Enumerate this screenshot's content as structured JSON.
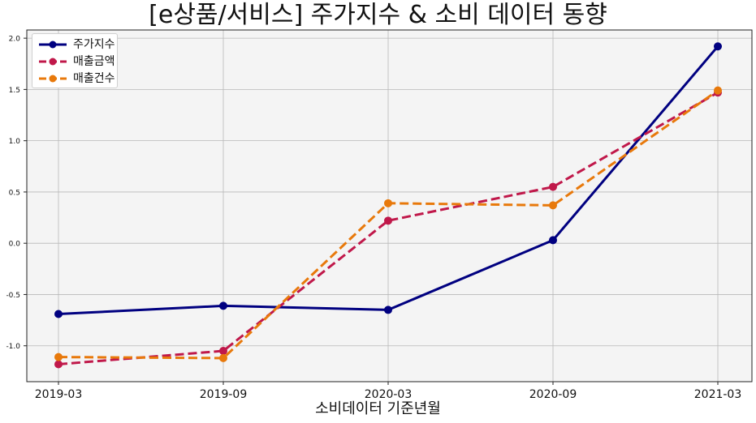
{
  "chart_data": {
    "type": "line",
    "title": "[e상품/서비스] 주가지수 & 소비 데이터 동향",
    "xlabel": "소비데이터 기준년월",
    "ylabel": "",
    "categories": [
      "2019-03",
      "2019-09",
      "2020-03",
      "2020-09",
      "2021-03"
    ],
    "ylim": [
      -1.35,
      2.08
    ],
    "yticks": [
      -1.0,
      -0.5,
      0.0,
      0.5,
      1.0,
      1.5,
      2.0
    ],
    "ytick_labels": [
      "-1.0",
      "-0.5",
      "0.0",
      "0.5",
      "1.0",
      "1.5",
      "2.0"
    ],
    "grid": true,
    "legend_position": "top-left",
    "background": "#f4f4f4",
    "series": [
      {
        "name": "주가지수",
        "values": [
          -0.69,
          -0.61,
          -0.65,
          0.03,
          1.92
        ],
        "color": "#000080",
        "style": "solid"
      },
      {
        "name": "매출금액",
        "values": [
          -1.18,
          -1.05,
          0.22,
          0.55,
          1.47
        ],
        "color": "#c0184a",
        "style": "dashed"
      },
      {
        "name": "매출건수",
        "values": [
          -1.11,
          -1.12,
          0.39,
          0.37,
          1.49
        ],
        "color": "#e8790b",
        "style": "dashed"
      }
    ]
  }
}
